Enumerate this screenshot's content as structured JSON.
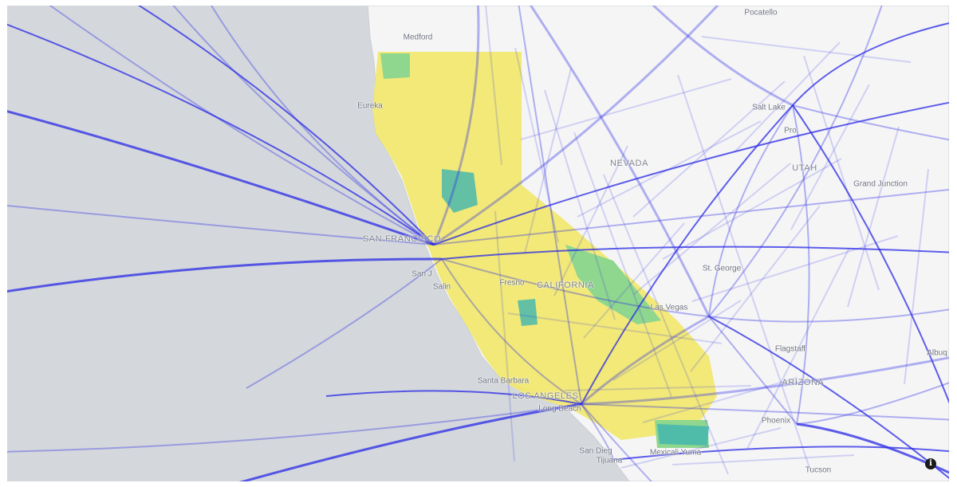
{
  "map": {
    "colors": {
      "water": "#d4d8dc",
      "land": "#f5f5f6",
      "route": "#2a2ae6",
      "region_yellow": "#f2e86a",
      "region_green": "#8fd68f",
      "region_teal": "#3fb5b0"
    },
    "places": [
      {
        "name": "Medford"
      },
      {
        "name": "Pocatello"
      },
      {
        "name": "Eureka"
      },
      {
        "name": "Salt Lake City"
      },
      {
        "name": "Provo"
      },
      {
        "name": "Grand Junction"
      },
      {
        "name": "San Francisco"
      },
      {
        "name": "San Jose"
      },
      {
        "name": "Salinas"
      },
      {
        "name": "Fresno"
      },
      {
        "name": "St. George"
      },
      {
        "name": "Las Vegas"
      },
      {
        "name": "Flagstaff"
      },
      {
        "name": "Albuquerque"
      },
      {
        "name": "Santa Barbara"
      },
      {
        "name": "Los Angeles"
      },
      {
        "name": "Long Beach"
      },
      {
        "name": "Phoenix"
      },
      {
        "name": "San Diego"
      },
      {
        "name": "Tijuana"
      },
      {
        "name": "Mexicali"
      },
      {
        "name": "Yuma"
      },
      {
        "name": "Tucson"
      }
    ],
    "states": [
      "NEVADA",
      "UTAH",
      "CALIFORNIA",
      "ARIZONA"
    ],
    "visible_labels": {
      "medford": "Medford",
      "pocatello": "Pocatello",
      "eureka": "Eureka",
      "salt_lake": "Salt Lake",
      "provo": "Pro",
      "grand_junction": "Grand Junction",
      "san_francisco": "SAN FRANCISCO",
      "san_jose": "San J",
      "salinas": "Salin",
      "fresno": "Fresno",
      "st_george": "St. George",
      "las_vegas": "Las Vegas",
      "flagstaff": "Flagstaff",
      "albuquerque": "Albuq",
      "santa_barbara": "Santa Barbara",
      "los_angeles": "LOS ANGELES",
      "long_beach": "Long Beach",
      "phoenix": "Phoenix",
      "san_diego": "San Dieg",
      "tijuana": "Tijuana",
      "mexicali_yuma": "Mexicali   Yuma",
      "tucson": "Tucson",
      "nevada": "NEVADA",
      "utah": "UTAH",
      "california": "CALIFORNIA",
      "arizona": "ARIZONA"
    },
    "info_icon": "info-icon"
  }
}
